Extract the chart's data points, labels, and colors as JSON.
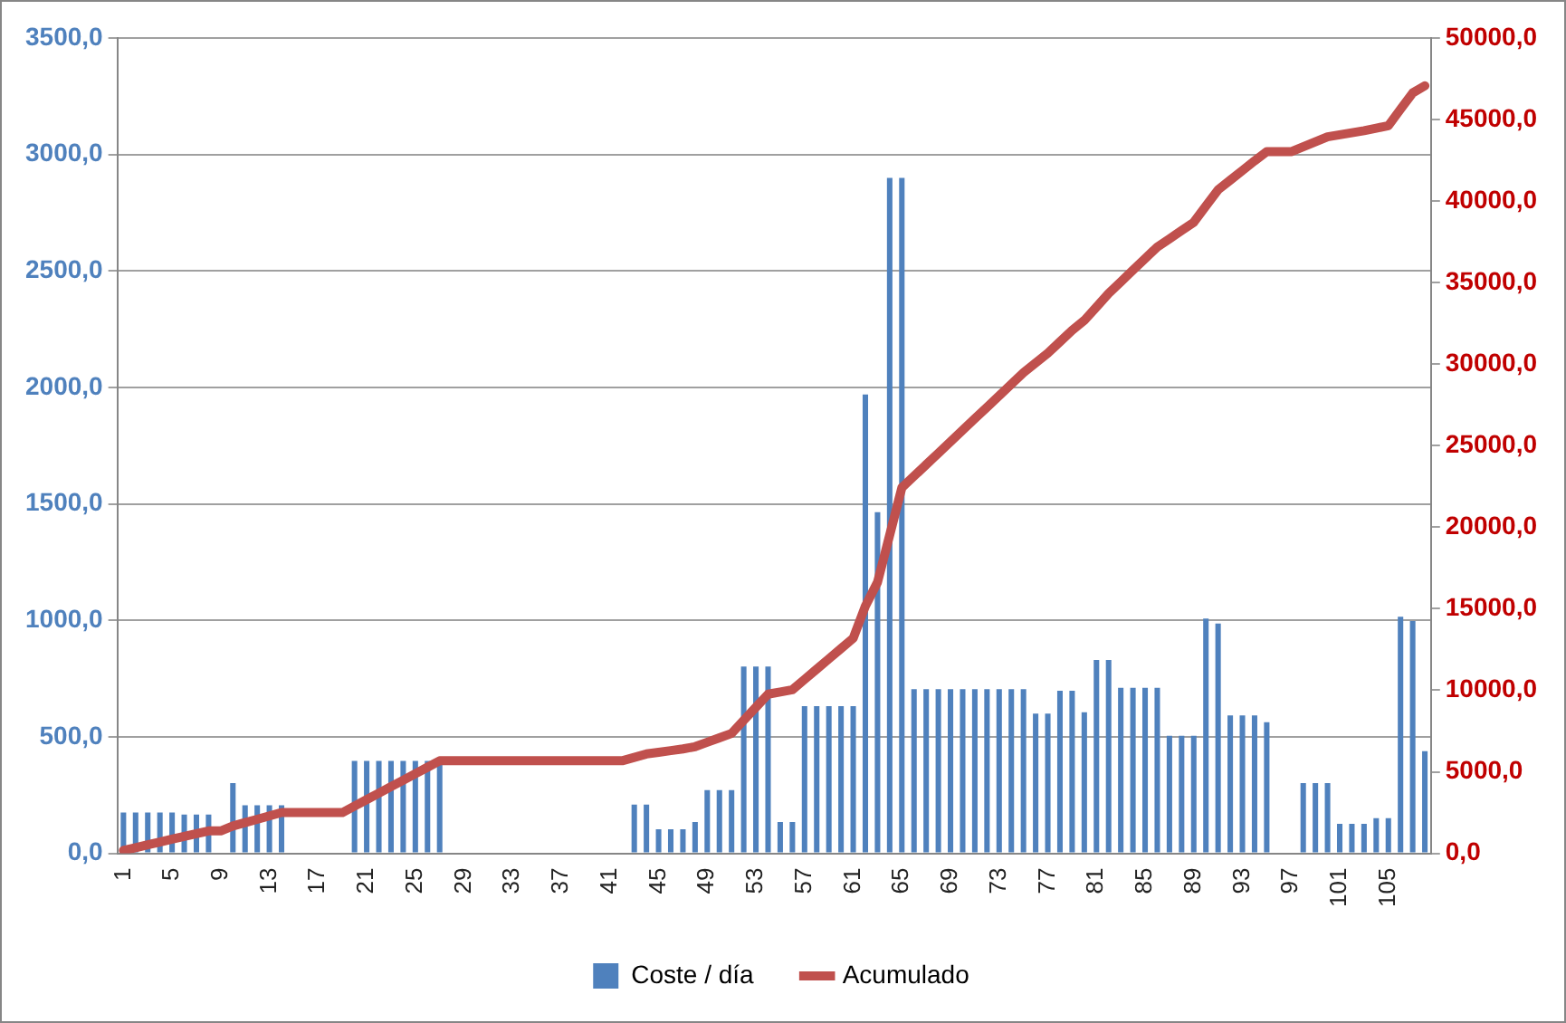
{
  "chart_data": {
    "type": "bar",
    "categories": [
      "1",
      null,
      null,
      null,
      "5",
      null,
      null,
      null,
      "9",
      null,
      null,
      null,
      "13",
      null,
      null,
      null,
      "17",
      null,
      null,
      null,
      "21",
      null,
      null,
      null,
      "25",
      null,
      null,
      null,
      "29",
      null,
      null,
      null,
      "33",
      null,
      null,
      null,
      "37",
      null,
      null,
      null,
      "41",
      null,
      null,
      null,
      "45",
      null,
      null,
      null,
      "49",
      null,
      null,
      null,
      "53",
      null,
      null,
      null,
      "57",
      null,
      null,
      null,
      "61",
      null,
      null,
      null,
      "65",
      null,
      null,
      null,
      "69",
      null,
      null,
      null,
      "73",
      null,
      null,
      null,
      "77",
      null,
      null,
      null,
      "81",
      null,
      null,
      null,
      "85",
      null,
      null,
      null,
      "89",
      null,
      null,
      null,
      "93",
      null,
      null,
      null,
      "97",
      null,
      null,
      null,
      "101",
      null,
      null,
      null,
      "105",
      null,
      null,
      null
    ],
    "series": [
      {
        "name": "Coste / día",
        "color": "#4f81bd",
        "values": [
          175,
          175,
          175,
          175,
          175,
          167,
          167,
          167,
          0,
          302,
          206,
          206,
          206,
          206,
          0,
          0,
          0,
          0,
          0,
          397,
          397,
          397,
          397,
          397,
          397,
          397,
          397,
          0,
          0,
          0,
          0,
          0,
          0,
          0,
          0,
          0,
          0,
          0,
          0,
          0,
          0,
          0,
          209,
          209,
          103,
          103,
          103,
          135,
          272,
          272,
          272,
          802,
          802,
          802,
          135,
          135,
          632,
          632,
          632,
          632,
          632,
          1970,
          1465,
          2900,
          2900,
          705,
          705,
          705,
          705,
          705,
          705,
          705,
          705,
          705,
          705,
          600,
          600,
          698,
          698,
          606,
          830,
          830,
          711,
          711,
          711,
          711,
          505,
          505,
          505,
          1008,
          987,
          592,
          592,
          592,
          563,
          0,
          0,
          302,
          302,
          302,
          127,
          127,
          127,
          151,
          151,
          1016,
          997,
          439
        ]
      },
      {
        "name": "Acumulado",
        "type": "line",
        "axis": "y2",
        "color": "#c0504d",
        "values": [
          175,
          350,
          525,
          700,
          875,
          1042,
          1209,
          1376,
          1376,
          1678,
          1884,
          2090,
          2296,
          2502,
          2502,
          2502,
          2502,
          2502,
          2502,
          2899,
          3296,
          3693,
          4090,
          4487,
          4884,
          5281,
          5678,
          5678,
          5678,
          5678,
          5678,
          5678,
          5678,
          5678,
          5678,
          5678,
          5678,
          5678,
          5678,
          5678,
          5678,
          5678,
          5887,
          6096,
          6199,
          6302,
          6405,
          6540,
          6812,
          7084,
          7356,
          8158,
          8960,
          9762,
          9897,
          10032,
          10664,
          11296,
          11928,
          12560,
          13192,
          15162,
          16627,
          19527,
          22427,
          23132,
          23837,
          24542,
          25247,
          25952,
          26657,
          27362,
          28067,
          28772,
          29477,
          30077,
          30677,
          31375,
          32073,
          32679,
          33509,
          34339,
          35050,
          35761,
          36472,
          37183,
          37688,
          38193,
          38698,
          39706,
          40693,
          41285,
          41877,
          42469,
          43032,
          43032,
          43032,
          43334,
          43636,
          43938,
          44065,
          44192,
          44319,
          44470,
          44621,
          45637,
          46634,
          47073
        ]
      }
    ],
    "ylim": [
      0,
      3500
    ],
    "yticks": [
      {
        "value": 0,
        "label": "0,0"
      },
      {
        "value": 500,
        "label": "500,0"
      },
      {
        "value": 1000,
        "label": "1000,0"
      },
      {
        "value": 1500,
        "label": "1500,0"
      },
      {
        "value": 2000,
        "label": "2000,0"
      },
      {
        "value": 2500,
        "label": "2500,0"
      },
      {
        "value": 3000,
        "label": "3000,0"
      },
      {
        "value": 3500,
        "label": "3500,0"
      }
    ],
    "y2lim": [
      0,
      50000
    ],
    "y2ticks": [
      {
        "value": 0,
        "label": "0,0"
      },
      {
        "value": 5000,
        "label": "5000,0"
      },
      {
        "value": 10000,
        "label": "10000,0"
      },
      {
        "value": 15000,
        "label": "15000,0"
      },
      {
        "value": 20000,
        "label": "20000,0"
      },
      {
        "value": 25000,
        "label": "25000,0"
      },
      {
        "value": 30000,
        "label": "30000,0"
      },
      {
        "value": 35000,
        "label": "35000,0"
      },
      {
        "value": 40000,
        "label": "40000,0"
      },
      {
        "value": 45000,
        "label": "45000,0"
      },
      {
        "value": 50000,
        "label": "50000,0"
      }
    ],
    "grid": "y",
    "legend": "bottom"
  }
}
